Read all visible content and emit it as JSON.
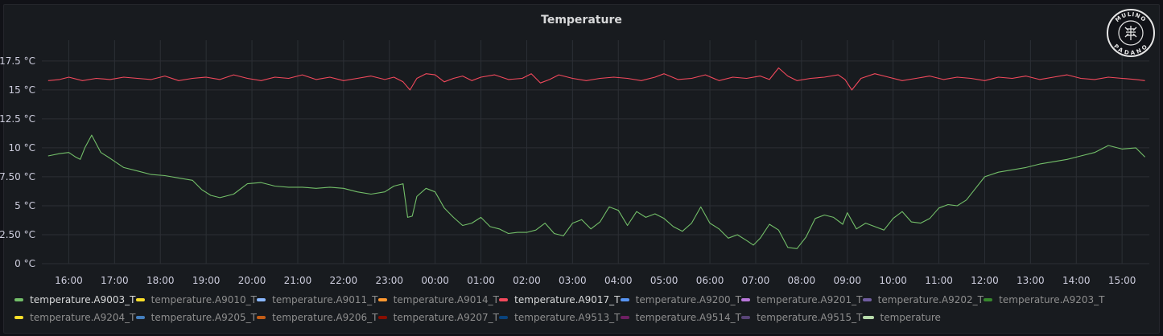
{
  "panel": {
    "title": "Temperature"
  },
  "logo": {
    "text_top": "MULINO",
    "text_bottom": "PADANO"
  },
  "chart_data": {
    "type": "line",
    "title": "Temperature",
    "ylim": [
      0,
      18.6
    ],
    "yticks": [
      0,
      2.5,
      5,
      7.5,
      10,
      12.5,
      15,
      17.5
    ],
    "ytick_labels": [
      "0 °C",
      "2.50 °C",
      "5 °C",
      "7.50 °C",
      "10 °C",
      "12.5 °C",
      "15 °C",
      "17.5 °C"
    ],
    "xticks": [
      "16:00",
      "17:00",
      "18:00",
      "19:00",
      "20:00",
      "21:00",
      "22:00",
      "23:00",
      "00:00",
      "01:00",
      "02:00",
      "03:00",
      "04:00",
      "05:00",
      "06:00",
      "07:00",
      "08:00",
      "09:00",
      "10:00",
      "11:00",
      "12:00",
      "13:00",
      "14:00",
      "15:00"
    ],
    "x_start_hour": 15.5,
    "grid": true,
    "series": [
      {
        "name": "temperature.A9017_T",
        "color": "#f2495c",
        "x": [
          15.55,
          15.8,
          16.0,
          16.3,
          16.6,
          16.9,
          17.2,
          17.5,
          17.8,
          18.1,
          18.4,
          18.7,
          19.0,
          19.3,
          19.6,
          19.9,
          20.2,
          20.5,
          20.8,
          21.1,
          21.4,
          21.7,
          22.0,
          22.3,
          22.6,
          22.9,
          23.1,
          23.3,
          23.45,
          23.6,
          23.8,
          24.0,
          24.2,
          24.4,
          24.6,
          24.8,
          25.0,
          25.3,
          25.6,
          25.9,
          26.1,
          26.3,
          26.5,
          26.7,
          27.0,
          27.3,
          27.6,
          27.9,
          28.2,
          28.5,
          28.8,
          29.0,
          29.3,
          29.6,
          29.9,
          30.2,
          30.5,
          30.8,
          31.1,
          31.3,
          31.5,
          31.7,
          31.9,
          32.2,
          32.5,
          32.8,
          32.95,
          33.1,
          33.3,
          33.6,
          33.9,
          34.2,
          34.5,
          34.8,
          35.1,
          35.4,
          35.7,
          36.0,
          36.3,
          36.6,
          36.9,
          37.2,
          37.5,
          37.8,
          38.1,
          38.4,
          38.7,
          39.0,
          39.3,
          39.5
        ],
        "y": [
          15.8,
          15.9,
          16.1,
          15.8,
          16.0,
          15.9,
          16.1,
          16.0,
          15.9,
          16.2,
          15.8,
          16.0,
          16.1,
          15.9,
          16.3,
          16.0,
          15.8,
          16.1,
          16.0,
          16.3,
          15.9,
          16.1,
          15.8,
          16.0,
          16.2,
          15.9,
          16.1,
          15.7,
          15.0,
          16.0,
          16.4,
          16.3,
          15.7,
          16.0,
          16.2,
          15.8,
          16.1,
          16.3,
          15.9,
          16.0,
          16.4,
          15.6,
          15.9,
          16.3,
          16.0,
          15.8,
          16.0,
          16.1,
          16.0,
          15.8,
          16.1,
          16.4,
          15.9,
          16.0,
          16.3,
          15.8,
          16.1,
          16.0,
          16.2,
          15.9,
          16.9,
          16.2,
          15.8,
          16.0,
          16.1,
          16.3,
          15.9,
          15.0,
          16.0,
          16.4,
          16.1,
          15.8,
          16.0,
          16.2,
          15.9,
          16.1,
          16.0,
          15.8,
          16.1,
          16.0,
          16.2,
          15.9,
          16.1,
          16.3,
          16.0,
          15.9,
          16.1,
          16.0,
          15.9,
          15.8
        ]
      },
      {
        "name": "temperature.A9003_T",
        "color": "#73bf69",
        "x": [
          15.55,
          15.8,
          16.0,
          16.15,
          16.25,
          16.35,
          16.5,
          16.7,
          16.9,
          17.2,
          17.5,
          17.8,
          18.1,
          18.4,
          18.7,
          18.9,
          19.1,
          19.3,
          19.6,
          19.9,
          20.2,
          20.5,
          20.8,
          21.1,
          21.4,
          21.7,
          22.0,
          22.3,
          22.6,
          22.9,
          23.1,
          23.3,
          23.4,
          23.5,
          23.6,
          23.8,
          24.0,
          24.2,
          24.4,
          24.6,
          24.8,
          25.0,
          25.2,
          25.4,
          25.6,
          25.8,
          26.0,
          26.2,
          26.4,
          26.6,
          26.8,
          27.0,
          27.2,
          27.4,
          27.6,
          27.8,
          28.0,
          28.2,
          28.4,
          28.6,
          28.8,
          29.0,
          29.2,
          29.4,
          29.6,
          29.8,
          30.0,
          30.2,
          30.4,
          30.6,
          30.8,
          30.95,
          31.1,
          31.3,
          31.5,
          31.7,
          31.9,
          32.1,
          32.3,
          32.5,
          32.7,
          32.9,
          33.0,
          33.2,
          33.4,
          33.6,
          33.8,
          34.0,
          34.2,
          34.4,
          34.6,
          34.8,
          35.0,
          35.2,
          35.4,
          35.6,
          35.8,
          36.0,
          36.3,
          36.6,
          36.9,
          37.2,
          37.5,
          37.8,
          38.1,
          38.4,
          38.7,
          39.0,
          39.3,
          39.5
        ],
        "y": [
          9.3,
          9.5,
          9.6,
          9.2,
          9.0,
          10.0,
          11.1,
          9.6,
          9.1,
          8.3,
          8.0,
          7.7,
          7.6,
          7.4,
          7.2,
          6.4,
          5.9,
          5.7,
          6.0,
          6.9,
          7.0,
          6.7,
          6.6,
          6.6,
          6.5,
          6.6,
          6.5,
          6.2,
          6.0,
          6.2,
          6.7,
          6.9,
          4.0,
          4.1,
          5.8,
          6.5,
          6.2,
          4.8,
          4.0,
          3.3,
          3.5,
          4.0,
          3.2,
          3.0,
          2.6,
          2.7,
          2.7,
          2.9,
          3.5,
          2.6,
          2.4,
          3.5,
          3.8,
          3.0,
          3.6,
          4.9,
          4.6,
          3.3,
          4.5,
          4.0,
          4.3,
          3.9,
          3.2,
          2.8,
          3.5,
          4.9,
          3.5,
          3.0,
          2.2,
          2.5,
          2.0,
          1.6,
          2.2,
          3.4,
          2.9,
          1.4,
          1.3,
          2.3,
          3.9,
          4.2,
          4.0,
          3.4,
          4.4,
          3.0,
          3.5,
          3.2,
          2.9,
          3.9,
          4.5,
          3.6,
          3.5,
          3.9,
          4.8,
          5.1,
          5.0,
          5.5,
          6.5,
          7.5,
          7.9,
          8.1,
          8.3,
          8.6,
          8.8,
          9.0,
          9.3,
          9.6,
          10.2,
          9.9,
          10.0,
          9.2
        ]
      }
    ]
  },
  "legend": {
    "rows": [
      [
        {
          "label": "temperature.A9003_T",
          "color": "#73bf69",
          "active": true
        },
        {
          "label": "temperature.A9010_T",
          "color": "#fade2a",
          "active": false
        },
        {
          "label": "temperature.A9011_T",
          "color": "#8ab8ff",
          "active": false
        },
        {
          "label": "temperature.A9014_T",
          "color": "#ff9830",
          "active": false
        },
        {
          "label": "temperature.A9017_T",
          "color": "#f2495c",
          "active": true
        },
        {
          "label": "temperature.A9200_T",
          "color": "#5794f2",
          "active": false
        },
        {
          "label": "temperature.A9201_T",
          "color": "#b877d9",
          "active": false
        },
        {
          "label": "temperature.A9202_T",
          "color": "#705da0",
          "active": false
        },
        {
          "label": "temperature.A9203_T",
          "color": "#37872d",
          "active": false
        }
      ],
      [
        {
          "label": "temperature.A9204_T",
          "color": "#fade2a",
          "active": false
        },
        {
          "label": "temperature.A9205_T",
          "color": "#447ebc",
          "active": false
        },
        {
          "label": "temperature.A9206_T",
          "color": "#c15c17",
          "active": false
        },
        {
          "label": "temperature.A9207_T",
          "color": "#890f02",
          "active": false
        },
        {
          "label": "temperature.A9513_T",
          "color": "#0a437c",
          "active": false
        },
        {
          "label": "temperature.A9514_T",
          "color": "#6d1f62",
          "active": false
        },
        {
          "label": "temperature.A9515_T",
          "color": "#584477",
          "active": false
        },
        {
          "label": "temperature",
          "color": "#b7dbab",
          "active": false
        }
      ]
    ]
  }
}
